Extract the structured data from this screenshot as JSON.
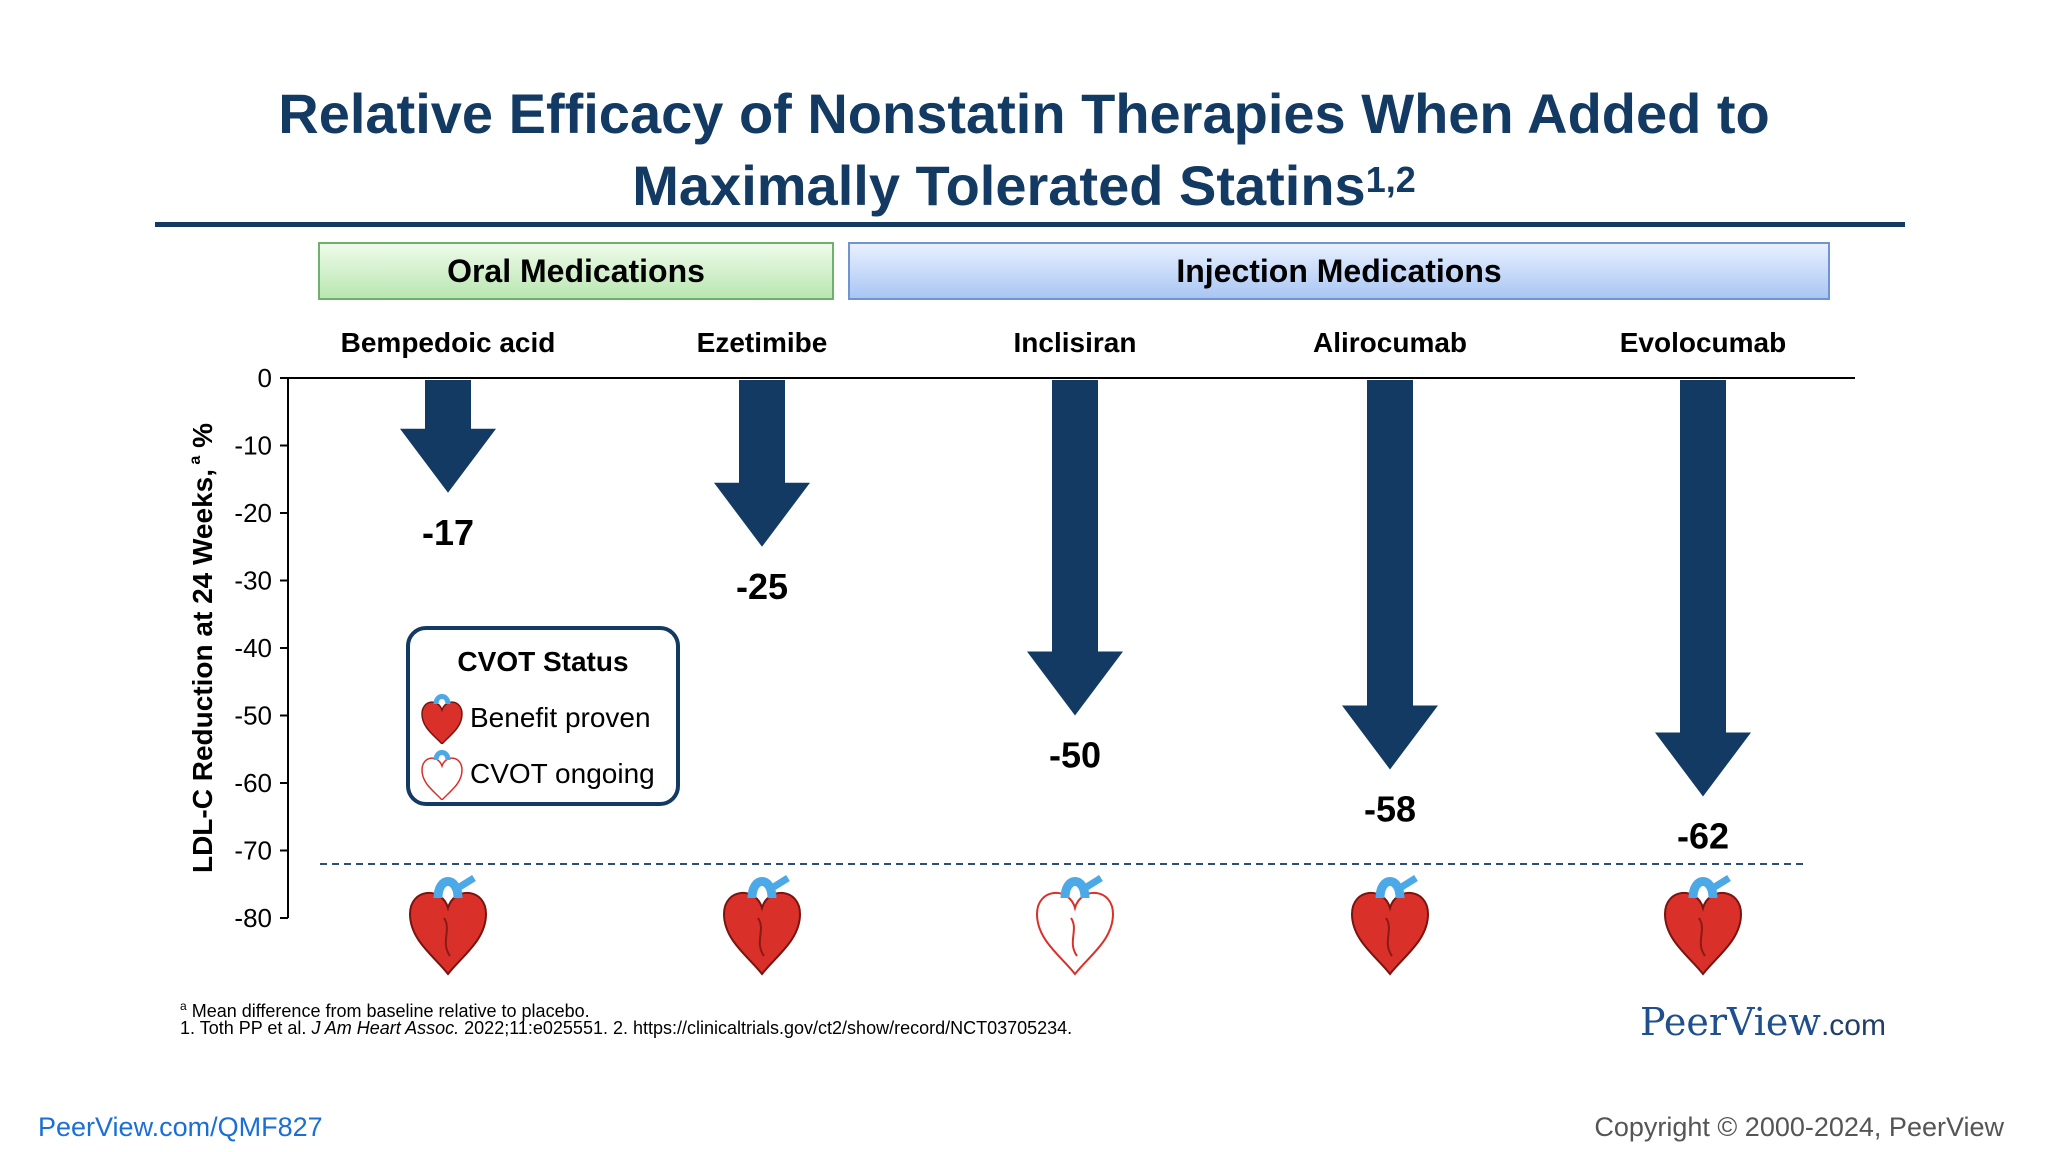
{
  "title": {
    "line1": "Relative Efficacy of Nonstatin Therapies When Added to",
    "line2": "Maximally Tolerated Statins",
    "superscript": "1,2"
  },
  "groups": {
    "oral": "Oral Medications",
    "injection": "Injection Medications"
  },
  "legend": {
    "title": "CVOT Status",
    "benefit": "Benefit proven",
    "ongoing": "CVOT ongoing"
  },
  "chart_data": {
    "type": "bar",
    "orientation": "downward arrows",
    "categories": [
      "Bempedoic acid",
      "Ezetimibe",
      "Inclisiran",
      "Alirocumab",
      "Evolocumab"
    ],
    "values": [
      -17,
      -25,
      -50,
      -58,
      -62
    ],
    "value_labels": [
      "-17",
      "-25",
      "-50",
      "-58",
      "-62"
    ],
    "cvot_status": [
      "benefit",
      "benefit",
      "ongoing",
      "benefit",
      "benefit"
    ],
    "ylabel": "LDL-C Reduction at 24 Weeks,",
    "ylabel_superscript": "a",
    "ylabel_unit": "%",
    "ylim": [
      -80,
      0
    ],
    "yticks": [
      0,
      -10,
      -20,
      -30,
      -40,
      -50,
      -60,
      -70,
      -80
    ],
    "reference_line": -72,
    "colors": {
      "arrow": "#133a62",
      "heart_red": "#d9302a",
      "heart_blue": "#4aa9e6"
    }
  },
  "footnotes": {
    "a_marker": "a",
    "a_text": "Mean difference from baseline relative to placebo.",
    "ref_1": "1. Toth PP et al.",
    "ref_1_journal": "J Am Heart Assoc.",
    "ref_1_rest": "2022;11:e025551. 2. https://clinicaltrials.gov/ct2/show/record/NCT03705234."
  },
  "brand": {
    "name": "PeerView",
    "suffix": ".com"
  },
  "bottom": {
    "link": "PeerView.com/QMF827",
    "copyright": "Copyright © 2000-2024, PeerView"
  }
}
